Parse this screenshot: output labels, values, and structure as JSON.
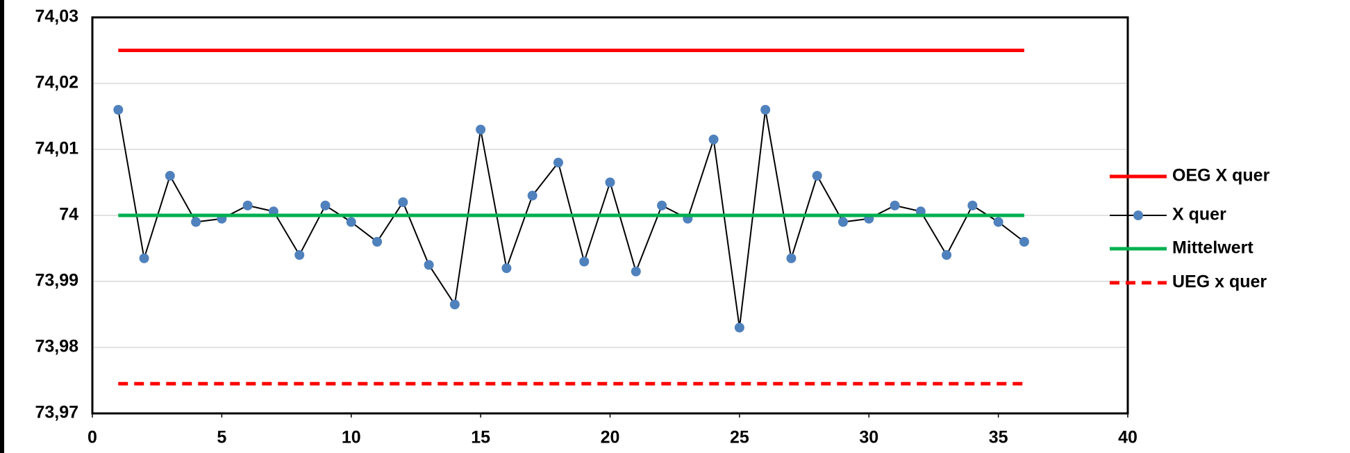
{
  "chart_data": {
    "type": "line",
    "xlim": [
      0,
      40
    ],
    "xticks": [
      0,
      5,
      10,
      15,
      20,
      25,
      30,
      35,
      40
    ],
    "ylim": [
      73.97,
      74.03
    ],
    "yticks": [
      {
        "value": 73.97,
        "label": "73,97"
      },
      {
        "value": 73.98,
        "label": "73,98"
      },
      {
        "value": 73.99,
        "label": "73,99"
      },
      74,
      {
        "value": 74.01,
        "label": "74,01"
      },
      {
        "value": 74.02,
        "label": "74,02"
      },
      {
        "value": 74.03,
        "label": "74,03"
      }
    ],
    "grid": true,
    "legend": "right",
    "series": [
      {
        "name": "OEG X quer",
        "color": "#ff0000",
        "line_style": "solid",
        "x": [
          1,
          36
        ],
        "values": [
          74.025,
          74.025
        ]
      },
      {
        "name": "X quer",
        "color": "#000000",
        "marker": "circle",
        "marker_color": "#4f81bd",
        "line_style": "solid",
        "x": [
          1,
          2,
          3,
          4,
          5,
          6,
          7,
          8,
          9,
          10,
          11,
          12,
          13,
          14,
          15,
          16,
          17,
          18,
          19,
          20,
          21,
          22,
          23,
          24,
          25,
          26,
          27,
          28,
          29,
          30,
          31,
          32,
          33,
          34,
          35,
          36
        ],
        "values": [
          74.016,
          73.9935,
          74.006,
          73.999,
          73.9995,
          74.0015,
          74.0006,
          73.994,
          74.0015,
          73.999,
          73.996,
          74.002,
          73.9925,
          73.9865,
          74.013,
          73.992,
          74.003,
          74.008,
          73.993,
          74.005,
          73.9915,
          74.0015,
          73.9995,
          74.0115,
          73.983,
          74.016,
          73.9935,
          74.006,
          73.999,
          73.9995,
          74.0015,
          74.0006,
          73.994,
          74.0015,
          73.999,
          73.996
        ]
      },
      {
        "name": "Mittelwert",
        "color": "#00b050",
        "line_style": "solid",
        "x": [
          1,
          36
        ],
        "values": [
          74,
          74
        ]
      },
      {
        "name": "UEG x quer",
        "color": "#ff0000",
        "line_style": "dashed",
        "x": [
          1,
          36
        ],
        "values": [
          73.9745,
          73.9745
        ]
      }
    ]
  }
}
